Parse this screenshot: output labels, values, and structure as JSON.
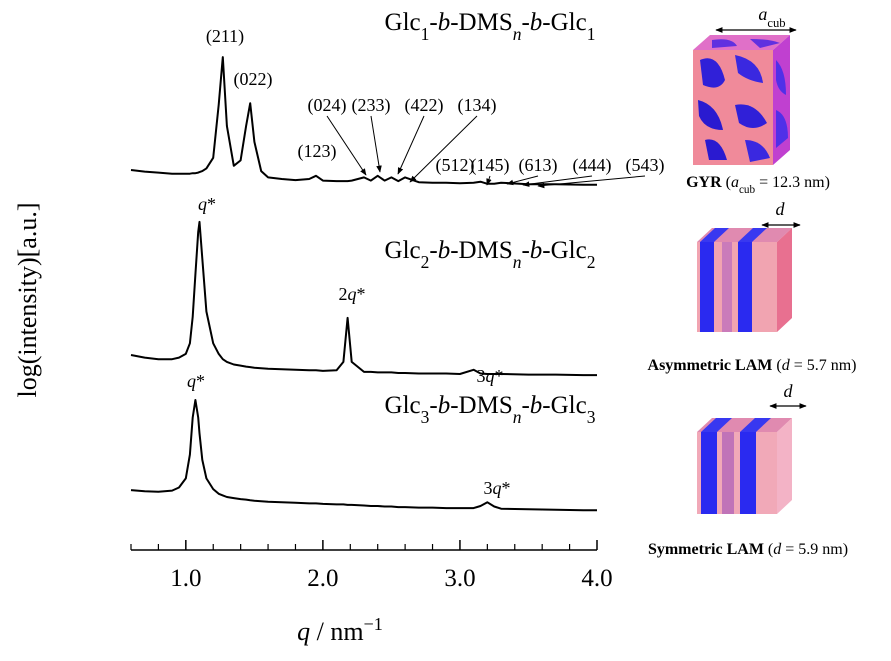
{
  "chart_data": {
    "type": "line",
    "x_label": "q / nm−1",
    "y_label": "log(intensity)[a.u.]",
    "x": [
      0.6,
      0.7,
      0.8,
      0.9,
      0.95,
      1.0,
      1.03,
      1.05,
      1.07,
      1.09,
      1.1,
      1.12,
      1.15,
      1.2,
      1.24,
      1.27,
      1.3,
      1.35,
      1.4,
      1.44,
      1.47,
      1.5,
      1.55,
      1.6,
      1.7,
      1.8,
      1.9,
      1.95,
      2.0,
      2.1,
      2.15,
      2.18,
      2.21,
      2.3,
      2.35,
      2.4,
      2.45,
      2.5,
      2.55,
      2.6,
      2.7,
      2.8,
      2.9,
      3.0,
      3.1,
      3.15,
      3.2,
      3.25,
      3.3,
      3.5,
      3.7,
      3.9,
      4.0
    ],
    "xlim": [
      0.6,
      4.0
    ],
    "xticks": [
      {
        "value": 1.0,
        "label": "1.0"
      },
      {
        "value": 2.0,
        "label": "2.0"
      },
      {
        "value": 3.0,
        "label": "3.0"
      },
      {
        "value": 4.0,
        "label": "4.0"
      }
    ],
    "xminorticks": [
      0.6,
      0.8,
      1.2,
      1.4,
      1.6,
      1.8,
      2.2,
      2.4,
      2.6,
      2.8,
      3.2,
      3.4,
      3.6,
      3.8
    ],
    "ylim": [
      0,
      100
    ],
    "grid": false,
    "series": [
      {
        "name": "Glc1-b-DMSn-b-Glc1",
        "color": "#000000",
        "values": [
          71.7,
          71.4,
          71.2,
          71.0,
          71.0,
          71.0,
          71.0,
          71.1,
          71.1,
          71.2,
          71.3,
          71.5,
          72,
          74,
          84,
          93,
          80,
          72.5,
          73.5,
          80,
          84.3,
          77,
          71.5,
          70.3,
          70,
          69.8,
          70.0,
          70.6,
          69.7,
          69.6,
          69.6,
          69.6,
          69.7,
          70.3,
          69.7,
          70.6,
          69.7,
          70.3,
          69.6,
          70.3,
          69.4,
          69.3,
          69.3,
          69.2,
          69.3,
          69.5,
          69.1,
          69.1,
          69.3,
          69.0,
          69.0,
          68.9,
          68.9
        ],
        "peak_labels": [
          "(211)",
          "(022)",
          "(123)",
          "(024)",
          "(233)",
          "(422)",
          "(134)",
          "(512)",
          "(145)",
          "(613)",
          "(444)",
          "(543)"
        ]
      },
      {
        "name": "Glc2-b-DMSn-b-Glc2",
        "color": "#000000",
        "values": [
          36.8,
          36.3,
          36.0,
          36.0,
          36.3,
          37,
          39,
          44,
          52,
          60,
          61.9,
          55,
          45,
          39,
          37,
          36,
          35.5,
          35,
          34.8,
          34.6,
          34.5,
          34.4,
          34.3,
          34.2,
          34.1,
          34.0,
          33.9,
          33.9,
          33.8,
          33.9,
          35.5,
          43.8,
          35.5,
          33.6,
          33.6,
          33.5,
          33.5,
          33.5,
          33.4,
          33.4,
          33.3,
          33.3,
          33.3,
          33.2,
          34.0,
          33.3,
          33.2,
          33.2,
          33.2,
          33.1,
          33.1,
          33.0,
          33.0
        ],
        "peak_labels": [
          "q*",
          "2q*",
          "3q*"
        ]
      },
      {
        "name": "Glc3-b-DMSn-b-Glc3",
        "color": "#000000",
        "values": [
          11.3,
          11.1,
          11.0,
          11.2,
          11.8,
          13.5,
          18,
          25,
          28.3,
          25,
          22,
          17,
          13.5,
          11.5,
          10.6,
          10.3,
          10.0,
          9.8,
          9.6,
          9.5,
          9.4,
          9.3,
          9.2,
          9.1,
          9.0,
          8.9,
          8.8,
          8.8,
          8.7,
          8.6,
          8.6,
          8.5,
          8.5,
          8.4,
          8.3,
          8.3,
          8.2,
          8.2,
          8.1,
          8.1,
          8.0,
          8.0,
          7.9,
          7.9,
          7.9,
          8.3,
          9.0,
          8.2,
          7.8,
          7.7,
          7.6,
          7.5,
          7.5
        ],
        "peak_labels": [
          "q*",
          "3q*"
        ]
      }
    ],
    "structures": [
      {
        "label": "GYR",
        "parameter": "(acub = 12.3 nm)",
        "dimension": "acub"
      },
      {
        "label": "Asymmetric LAM",
        "parameter": "(d = 5.7 nm)",
        "dimension": "d"
      },
      {
        "label": "Symmetric LAM",
        "parameter": "(d = 5.9 nm)",
        "dimension": "d"
      }
    ]
  }
}
